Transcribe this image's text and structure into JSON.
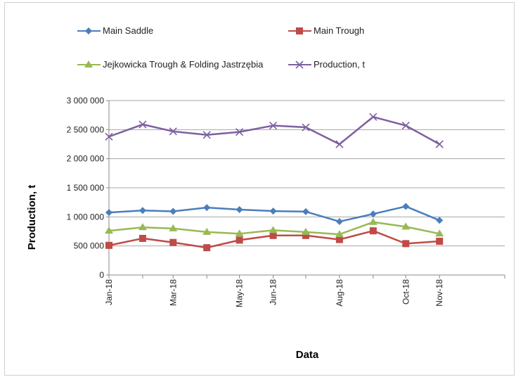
{
  "chart_data": {
    "type": "line",
    "title": "",
    "xlabel": "Data",
    "ylabel": "Production, t",
    "ylim": [
      0,
      3000000
    ],
    "yticks": [
      0,
      500000,
      1000000,
      1500000,
      2000000,
      2500000,
      3000000
    ],
    "ytick_labels": [
      "0",
      "500 000",
      "1 000 000",
      "1 500 000",
      "2 000 000",
      "2 500 000",
      "3 000 000"
    ],
    "grid": "horizontal",
    "legend_position": "top",
    "x": [
      "2018-01-01",
      "2018-02-01",
      "2018-03-01",
      "2018-04-01",
      "2018-05-01",
      "2018-06-01",
      "2018-07-01",
      "2018-08-01",
      "2018-09-01",
      "2018-10-01",
      "2018-11-01"
    ],
    "xlim": [
      "2018-01-01",
      "2018-12-31"
    ],
    "xticks": [
      "2018-01-01",
      "2018-03-01",
      "2018-05-01",
      "2018-06-01",
      "2018-08-01",
      "2018-10-01",
      "2018-11-01"
    ],
    "xtick_labels": [
      "Jan-18",
      "Mar-18",
      "May-18",
      "Jun-18",
      "Aug-18",
      "Oct-18",
      "Nov-18"
    ],
    "series": [
      {
        "name": "Main Saddle",
        "color": "#4a7ebb",
        "marker": "diamond",
        "values": [
          1075000,
          1110000,
          1095000,
          1160000,
          1125000,
          1100000,
          1090000,
          920000,
          1050000,
          1180000,
          940000
        ]
      },
      {
        "name": "Main Trough",
        "color": "#be4b48",
        "marker": "square",
        "values": [
          510000,
          630000,
          560000,
          470000,
          600000,
          680000,
          680000,
          610000,
          760000,
          540000,
          580000
        ]
      },
      {
        "name": "Jejkowicka Trough & Folding Jastrzębia",
        "color": "#98b954",
        "marker": "triangle",
        "values": [
          760000,
          820000,
          800000,
          740000,
          710000,
          770000,
          740000,
          700000,
          910000,
          830000,
          710000
        ]
      },
      {
        "name": "Production, t",
        "color": "#7d60a0",
        "marker": "x",
        "values": [
          2380000,
          2590000,
          2470000,
          2410000,
          2460000,
          2570000,
          2540000,
          2250000,
          2720000,
          2570000,
          2250000
        ]
      }
    ]
  }
}
